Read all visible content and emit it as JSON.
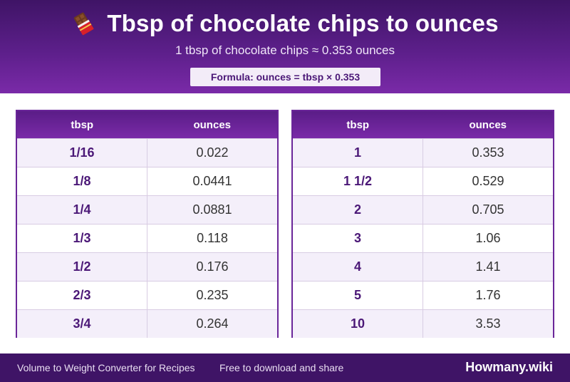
{
  "header": {
    "icon": "chocolate-bar-icon",
    "title": "Tbsp of chocolate chips to ounces",
    "subtitle": "1 tbsp of chocolate chips ≈ 0.353 ounces",
    "formula": "Formula: ounces = tbsp × 0.353"
  },
  "colors": {
    "header_dark": "#3f1466",
    "header_light": "#7a2aa8",
    "accent_text": "#4b1877",
    "row_alt": "#f4effa"
  },
  "tables": [
    {
      "headers": [
        "tbsp",
        "ounces"
      ],
      "rows": [
        {
          "tbsp": "1/16",
          "ounces": "0.022"
        },
        {
          "tbsp": "1/8",
          "ounces": "0.0441"
        },
        {
          "tbsp": "1/4",
          "ounces": "0.0881"
        },
        {
          "tbsp": "1/3",
          "ounces": "0.118"
        },
        {
          "tbsp": "1/2",
          "ounces": "0.176"
        },
        {
          "tbsp": "2/3",
          "ounces": "0.235"
        },
        {
          "tbsp": "3/4",
          "ounces": "0.264"
        }
      ]
    },
    {
      "headers": [
        "tbsp",
        "ounces"
      ],
      "rows": [
        {
          "tbsp": "1",
          "ounces": "0.353"
        },
        {
          "tbsp": "1 1/2",
          "ounces": "0.529"
        },
        {
          "tbsp": "2",
          "ounces": "0.705"
        },
        {
          "tbsp": "3",
          "ounces": "1.06"
        },
        {
          "tbsp": "4",
          "ounces": "1.41"
        },
        {
          "tbsp": "5",
          "ounces": "1.76"
        },
        {
          "tbsp": "10",
          "ounces": "3.53"
        }
      ]
    }
  ],
  "footer": {
    "left_text": "Volume to Weight Converter for Recipes",
    "middle_text": "Free to download and share",
    "brand": "Howmany.wiki"
  }
}
